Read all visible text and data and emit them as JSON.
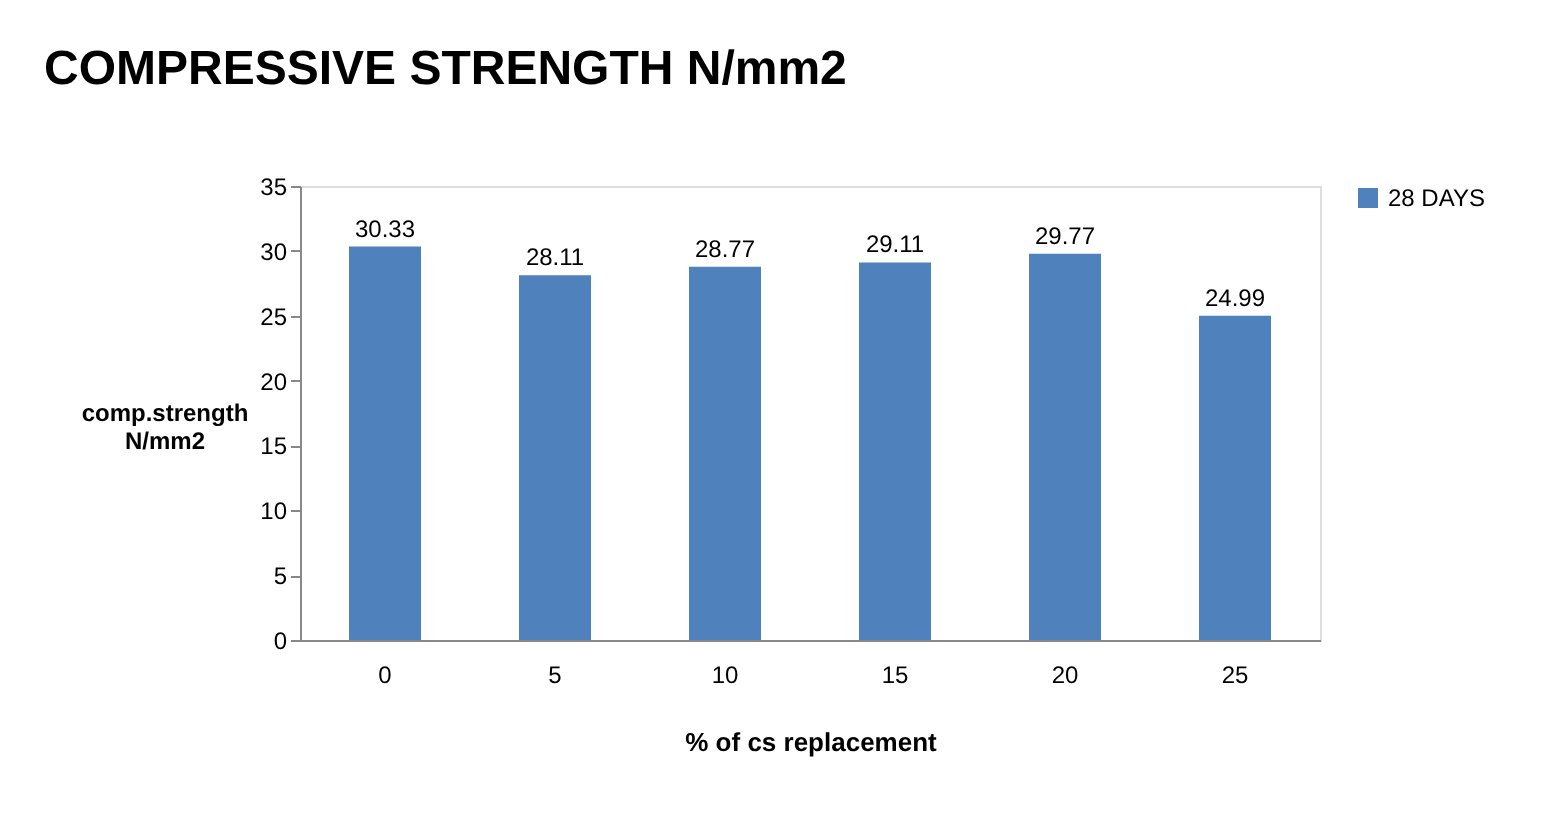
{
  "chart_data": {
    "type": "bar",
    "title": "COMPRESSIVE STRENGTH N/mm2",
    "xlabel": "% of cs replacement",
    "ylabel": "comp.strength N/mm2",
    "categories": [
      "0",
      "5",
      "10",
      "15",
      "20",
      "25"
    ],
    "series": [
      {
        "name": "28 DAYS",
        "color": "#4f81bd",
        "values": [
          30.33,
          28.11,
          28.77,
          29.11,
          29.77,
          24.99
        ]
      }
    ],
    "ylim": [
      0,
      35
    ],
    "yticks": [
      0,
      5,
      10,
      15,
      20,
      25,
      30,
      35
    ],
    "grid": false,
    "legend": "right",
    "data_labels": true
  }
}
